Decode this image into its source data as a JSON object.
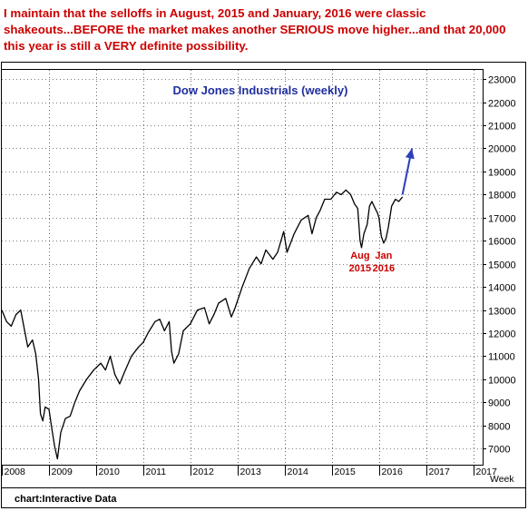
{
  "headline": "I maintain that the selloffs in August, 2015 and January, 2016 were classic shakeouts...BEFORE the market makes another SERIOUS move higher...and that 20,000 this year is still a VERY definite possibility.",
  "source": "chart:Interactive Data",
  "colors": {
    "headline": "#cc0000",
    "title": "#1f2f9f",
    "line": "#000000",
    "arrow": "#2a3fb8",
    "annotation": "#cc0000"
  },
  "chart_data": {
    "type": "line",
    "title": "Dow Jones Industrials (weekly)",
    "xlabel": "Week",
    "ylabel": "",
    "x_tick_labels": [
      "2008",
      "2009",
      "2010",
      "2011",
      "2012",
      "2013",
      "2014",
      "2015",
      "2016",
      "2017",
      "2017"
    ],
    "y_ticks": [
      7000,
      8000,
      9000,
      10000,
      11000,
      12000,
      13000,
      14000,
      15000,
      16000,
      17000,
      18000,
      19000,
      20000,
      21000,
      22000,
      23000
    ],
    "ylim": [
      6300,
      23400
    ],
    "grid": true,
    "series": [
      {
        "name": "",
        "x": [
          2008.0,
          2008.1,
          2008.2,
          2008.3,
          2008.4,
          2008.55,
          2008.65,
          2008.72,
          2008.78,
          2008.82,
          2008.87,
          2008.92,
          2009.0,
          2009.05,
          2009.12,
          2009.18,
          2009.25,
          2009.35,
          2009.45,
          2009.55,
          2009.65,
          2009.8,
          2009.95,
          2010.1,
          2010.2,
          2010.3,
          2010.4,
          2010.5,
          2010.6,
          2010.75,
          2010.9,
          2011.0,
          2011.1,
          2011.25,
          2011.35,
          2011.45,
          2011.55,
          2011.6,
          2011.65,
          2011.75,
          2011.85,
          2012.0,
          2012.15,
          2012.3,
          2012.4,
          2012.5,
          2012.6,
          2012.75,
          2012.87,
          2012.95,
          2013.1,
          2013.25,
          2013.4,
          2013.5,
          2013.6,
          2013.75,
          2013.85,
          2013.98,
          2014.05,
          2014.2,
          2014.35,
          2014.5,
          2014.58,
          2014.67,
          2014.75,
          2014.85,
          2014.98,
          2015.1,
          2015.2,
          2015.3,
          2015.4,
          2015.48,
          2015.55,
          2015.6,
          2015.63,
          2015.68,
          2015.75,
          2015.8,
          2015.85,
          2015.92,
          2015.97,
          2016.0,
          2016.05,
          2016.1,
          2016.15,
          2016.2,
          2016.27,
          2016.35,
          2016.42,
          2016.5
        ],
        "values": [
          13000,
          12500,
          12300,
          12800,
          13000,
          11400,
          11700,
          11100,
          10000,
          8500,
          8200,
          8800,
          8700,
          8000,
          7100,
          6550,
          7700,
          8300,
          8400,
          9000,
          9500,
          10000,
          10400,
          10700,
          10400,
          11000,
          10200,
          9800,
          10300,
          11000,
          11400,
          11600,
          12000,
          12500,
          12600,
          12100,
          12500,
          11200,
          10700,
          11100,
          12100,
          12400,
          13000,
          13100,
          12400,
          12800,
          13300,
          13500,
          12700,
          13100,
          14000,
          14800,
          15300,
          15000,
          15600,
          15200,
          15500,
          16400,
          15500,
          16300,
          16900,
          17100,
          16300,
          17000,
          17300,
          17800,
          17800,
          18100,
          18000,
          18200,
          18000,
          17600,
          17400,
          16000,
          15700,
          16300,
          16700,
          17500,
          17700,
          17400,
          17200,
          17000,
          16200,
          15900,
          16100,
          16600,
          17500,
          17800,
          17700,
          17900
        ]
      }
    ],
    "projection": {
      "x": [
        2016.5,
        2016.7
      ],
      "values": [
        18000,
        20000
      ]
    },
    "annotations": [
      {
        "label": "Aug",
        "sublabel": "2015",
        "x": 2015.6,
        "value": 15300
      },
      {
        "label": "Jan",
        "sublabel": "2016",
        "x": 2016.1,
        "value": 15300
      }
    ]
  }
}
